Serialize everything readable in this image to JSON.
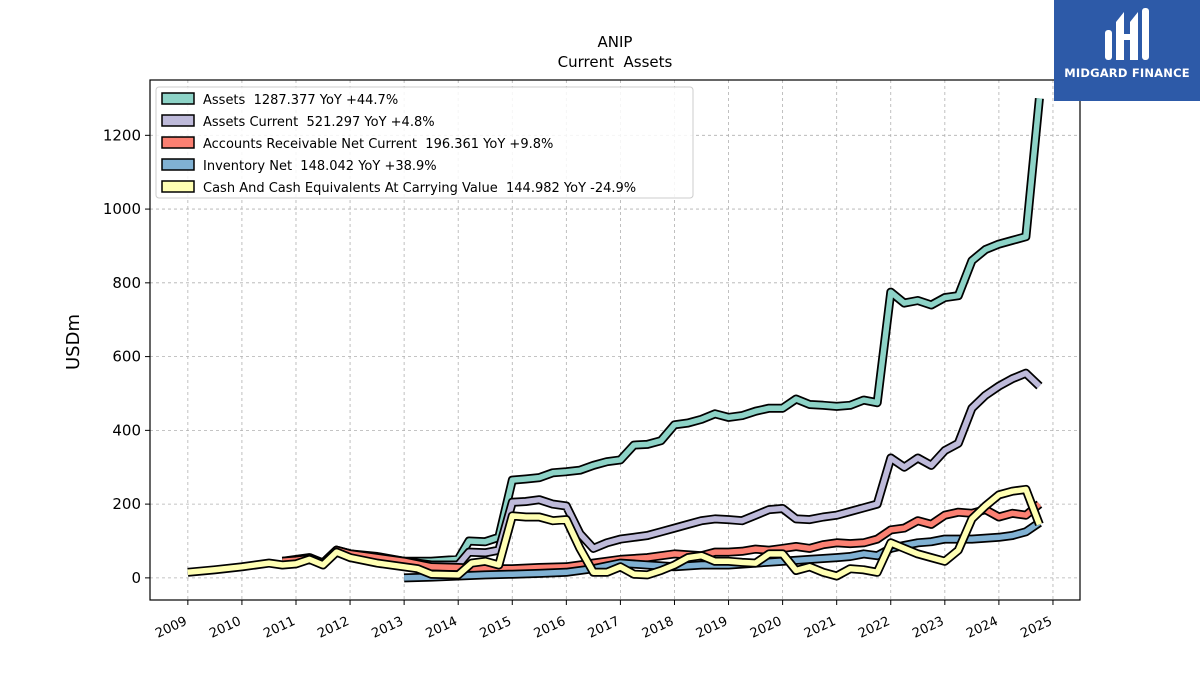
{
  "brand": {
    "name": "MIDGARD FINANCE",
    "icon": "midgard-logo-icon",
    "background": "#2d5aa8"
  },
  "chart_data": {
    "type": "line",
    "title": "ANIP",
    "subtitle": "Current  Assets",
    "ylabel": "USDm",
    "xlim": [
      2008.3,
      2025.5
    ],
    "ylim": [
      -60,
      1350
    ],
    "xticks": [
      2009,
      2010,
      2011,
      2012,
      2013,
      2014,
      2015,
      2016,
      2017,
      2018,
      2019,
      2020,
      2021,
      2022,
      2023,
      2024,
      2025
    ],
    "yticks": [
      0,
      200,
      400,
      600,
      800,
      1000,
      1200
    ],
    "grid": true,
    "legend_position": "top-left",
    "series": [
      {
        "name": "Assets  1287.377 YoY +44.7%",
        "color": "#8dd3c7",
        "x": [
          2010.75,
          2011.0,
          2011.25,
          2011.5,
          2011.75,
          2012.0,
          2012.5,
          2013.0,
          2013.5,
          2014.0,
          2014.2,
          2014.5,
          2014.75,
          2015.0,
          2015.25,
          2015.5,
          2015.75,
          2016.0,
          2016.25,
          2016.5,
          2016.75,
          2017.0,
          2017.25,
          2017.5,
          2017.75,
          2018.0,
          2018.25,
          2018.5,
          2018.75,
          2019.0,
          2019.25,
          2019.5,
          2019.75,
          2020.0,
          2020.25,
          2020.5,
          2020.75,
          2021.0,
          2021.25,
          2021.5,
          2021.75,
          2022.0,
          2022.25,
          2022.5,
          2022.75,
          2023.0,
          2023.25,
          2023.5,
          2023.75,
          2024.0,
          2024.25,
          2024.5,
          2024.75
        ],
        "y": [
          45,
          50,
          55,
          40,
          75,
          65,
          58,
          45,
          45,
          50,
          100,
          98,
          110,
          265,
          268,
          272,
          285,
          288,
          292,
          305,
          315,
          320,
          360,
          362,
          372,
          415,
          420,
          430,
          445,
          435,
          440,
          452,
          460,
          460,
          485,
          470,
          468,
          465,
          468,
          482,
          475,
          775,
          745,
          752,
          740,
          760,
          765,
          860,
          890,
          905,
          915,
          925,
          1300
        ]
      },
      {
        "name": "Assets Current  521.297 YoY +4.8%",
        "color": "#bebada",
        "x": [
          2010.75,
          2011.0,
          2011.25,
          2011.5,
          2011.75,
          2012.0,
          2012.5,
          2013.0,
          2013.5,
          2014.0,
          2014.2,
          2014.5,
          2014.75,
          2015.0,
          2015.25,
          2015.5,
          2015.75,
          2016.0,
          2016.25,
          2016.5,
          2016.75,
          2017.0,
          2017.25,
          2017.5,
          2017.75,
          2018.0,
          2018.25,
          2018.5,
          2018.75,
          2019.0,
          2019.25,
          2019.5,
          2019.75,
          2020.0,
          2020.25,
          2020.5,
          2020.75,
          2021.0,
          2021.25,
          2021.5,
          2021.75,
          2022.0,
          2022.25,
          2022.5,
          2022.75,
          2023.0,
          2023.25,
          2023.5,
          2023.75,
          2024.0,
          2024.25,
          2024.5,
          2024.75
        ],
        "y": [
          45,
          48,
          52,
          40,
          75,
          65,
          55,
          45,
          35,
          35,
          70,
          68,
          75,
          205,
          207,
          212,
          200,
          195,
          120,
          80,
          95,
          105,
          110,
          115,
          125,
          135,
          145,
          155,
          160,
          158,
          155,
          170,
          185,
          188,
          160,
          158,
          165,
          170,
          180,
          190,
          200,
          325,
          300,
          325,
          305,
          345,
          365,
          460,
          495,
          520,
          540,
          555,
          520
        ]
      },
      {
        "name": "Accounts Receivable Net Current  196.361 YoY +9.8%",
        "color": "#fb8072",
        "x": [
          2010.75,
          2011.0,
          2011.25,
          2011.5,
          2011.75,
          2012.0,
          2012.5,
          2013.0,
          2013.5,
          2014.0,
          2014.5,
          2015.0,
          2015.5,
          2016.0,
          2016.5,
          2017.0,
          2017.5,
          2018.0,
          2018.5,
          2018.75,
          2019.0,
          2019.25,
          2019.5,
          2019.75,
          2020.0,
          2020.25,
          2020.5,
          2020.75,
          2021.0,
          2021.25,
          2021.5,
          2021.75,
          2022.0,
          2022.25,
          2022.5,
          2022.75,
          2023.0,
          2023.25,
          2023.5,
          2023.75,
          2024.0,
          2024.25,
          2024.5,
          2024.75
        ],
        "y": [
          45,
          48,
          52,
          40,
          75,
          65,
          55,
          45,
          30,
          28,
          25,
          25,
          28,
          30,
          40,
          50,
          55,
          65,
          60,
          70,
          70,
          72,
          78,
          75,
          80,
          85,
          80,
          90,
          95,
          93,
          95,
          105,
          130,
          135,
          155,
          145,
          170,
          178,
          175,
          185,
          165,
          175,
          170,
          200
        ]
      },
      {
        "name": "Inventory Net  148.042 YoY +38.9%",
        "color": "#80b1d3",
        "x": [
          2013.0,
          2013.5,
          2014.0,
          2014.5,
          2015.0,
          2015.5,
          2016.0,
          2016.5,
          2017.0,
          2017.5,
          2018.0,
          2018.5,
          2019.0,
          2019.5,
          2020.0,
          2020.5,
          2021.0,
          2021.25,
          2021.5,
          2021.75,
          2022.0,
          2022.25,
          2022.5,
          2022.75,
          2023.0,
          2023.5,
          2024.0,
          2024.25,
          2024.5,
          2024.75
        ],
        "y": [
          0,
          2,
          5,
          8,
          10,
          12,
          15,
          25,
          40,
          35,
          30,
          35,
          35,
          40,
          45,
          50,
          55,
          58,
          65,
          60,
          80,
          88,
          95,
          98,
          105,
          105,
          110,
          115,
          125,
          150
        ]
      },
      {
        "name": "Cash And Cash Equivalents At Carrying Value  144.982 YoY -24.9%",
        "color": "#ffffb3",
        "x": [
          2009.0,
          2009.5,
          2010.0,
          2010.5,
          2010.75,
          2011.0,
          2011.25,
          2011.5,
          2011.75,
          2012.0,
          2012.5,
          2013.0,
          2013.25,
          2013.5,
          2014.0,
          2014.25,
          2014.5,
          2014.75,
          2015.0,
          2015.25,
          2015.5,
          2015.75,
          2016.0,
          2016.25,
          2016.5,
          2016.75,
          2017.0,
          2017.25,
          2017.5,
          2017.75,
          2018.0,
          2018.25,
          2018.5,
          2018.75,
          2019.0,
          2019.25,
          2019.5,
          2019.75,
          2020.0,
          2020.25,
          2020.5,
          2020.75,
          2021.0,
          2021.25,
          2021.5,
          2021.75,
          2022.0,
          2022.25,
          2022.5,
          2022.75,
          2023.0,
          2023.25,
          2023.5,
          2023.75,
          2024.0,
          2024.25,
          2024.5,
          2024.75
        ],
        "y": [
          15,
          22,
          30,
          40,
          35,
          38,
          50,
          35,
          70,
          55,
          40,
          30,
          25,
          10,
          8,
          40,
          45,
          35,
          168,
          165,
          165,
          155,
          158,
          80,
          15,
          15,
          30,
          10,
          8,
          20,
          35,
          55,
          60,
          45,
          45,
          42,
          40,
          65,
          65,
          20,
          30,
          15,
          5,
          25,
          22,
          15,
          95,
          80,
          65,
          55,
          45,
          75,
          160,
          195,
          225,
          235,
          240,
          145
        ]
      }
    ]
  }
}
